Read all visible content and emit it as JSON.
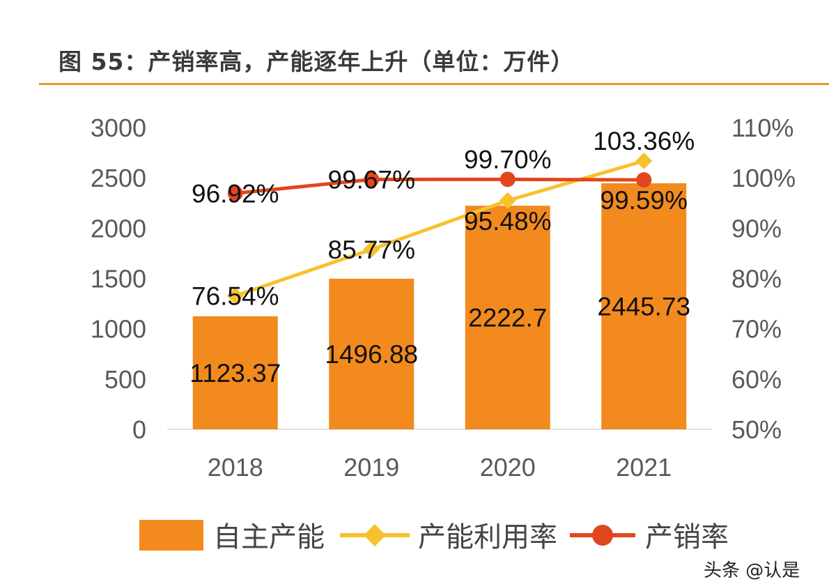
{
  "title": "图 55：产销率高，产能逐年上升（单位：万件）",
  "watermark": "头条 @认是",
  "chart_data": {
    "type": "bar+line",
    "categories": [
      "2018",
      "2019",
      "2020",
      "2021"
    ],
    "left_axis": {
      "ylim": [
        0,
        3000
      ],
      "ticks": [
        "0",
        "500",
        "1000",
        "1500",
        "2000",
        "2500",
        "3000"
      ]
    },
    "right_axis": {
      "ylim": [
        50,
        110
      ],
      "ticks": [
        "50%",
        "60%",
        "70%",
        "80%",
        "90%",
        "100%",
        "110%"
      ]
    },
    "series": [
      {
        "name": "自主产能",
        "kind": "bar",
        "axis": "left",
        "color": "#f28a1e",
        "values": [
          1123.37,
          1496.88,
          2222.7,
          2445.73
        ],
        "labels": [
          "1123.37",
          "1496.88",
          "2222.7",
          "2445.73"
        ]
      },
      {
        "name": "产能利用率",
        "kind": "line",
        "marker": "diamond",
        "axis": "right",
        "color": "#f7c12e",
        "values": [
          76.54,
          85.77,
          95.48,
          103.36
        ],
        "labels": [
          "76.54%",
          "85.77%",
          "95.48%",
          "103.36%"
        ]
      },
      {
        "name": "产销率",
        "kind": "line",
        "marker": "circle",
        "axis": "right",
        "color": "#e2461c",
        "values": [
          96.92,
          99.67,
          99.7,
          99.59
        ],
        "labels": [
          "96.92%",
          "99.67%",
          "99.70%",
          "99.59%"
        ]
      }
    ],
    "legend": "bottom",
    "grid": false
  }
}
